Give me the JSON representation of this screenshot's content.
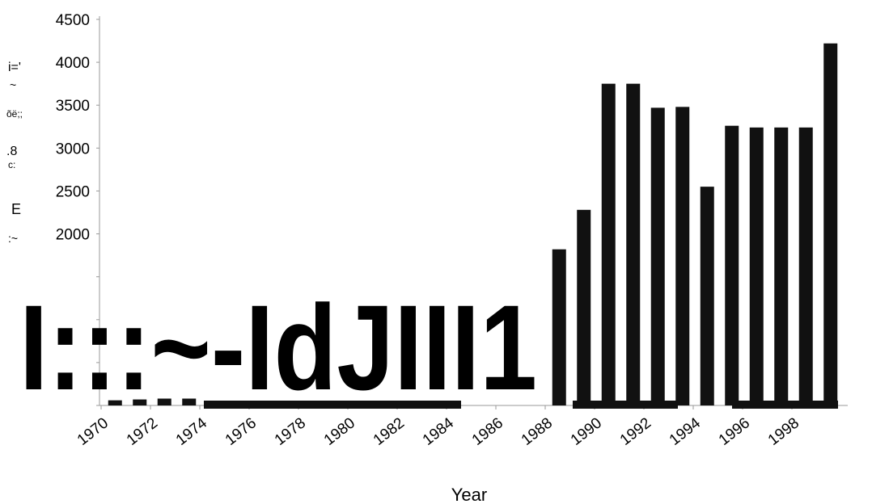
{
  "chart_data": {
    "type": "bar",
    "title": "",
    "xlabel": "Year",
    "ylabel": "",
    "ylim": [
      0,
      4500
    ],
    "yticks": [
      0,
      500,
      1000,
      1500,
      2000,
      2500,
      3000,
      3500,
      4000,
      4500
    ],
    "y_tick_labels": [
      "2000",
      "2500",
      "3000",
      "3500",
      "4000",
      "4500"
    ],
    "x_tick_labels": [
      "1970",
      "1972",
      "1974",
      "1976",
      "1978",
      "1980",
      "1982",
      "1984",
      "1986",
      "1988",
      "1990",
      "1992",
      "1994",
      "1996",
      "1998"
    ],
    "categories": [
      "1970",
      "1971",
      "1972",
      "1973",
      "1974",
      "1975",
      "1976",
      "1977",
      "1978",
      "1979",
      "1980",
      "1981",
      "1982",
      "1983",
      "1984",
      "1985",
      "1986",
      "1987",
      "1988",
      "1989",
      "1990",
      "1991",
      "1992",
      "1993",
      "1994",
      "1995",
      "1996",
      "1997",
      "1998",
      "1999"
    ],
    "values": [
      60,
      70,
      80,
      80,
      0,
      0,
      0,
      0,
      0,
      0,
      0,
      0,
      0,
      0,
      0,
      0,
      0,
      0,
      1820,
      2280,
      3750,
      3750,
      3470,
      3480,
      2550,
      3260,
      3240,
      3240,
      3240,
      4220
    ],
    "bar_color": "#111111",
    "grid": false,
    "legend": "none"
  },
  "scan_artifacts": {
    "left_margin_text": [
      "i='",
      "~",
      "õë;;",
      ".8",
      "c:",
      "E",
      ":~"
    ],
    "overlay_text": "I:::~-IdJIII1"
  }
}
